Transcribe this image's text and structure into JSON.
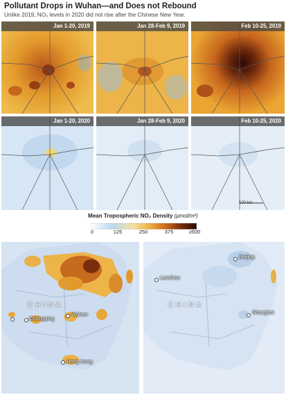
{
  "header": {
    "title": "Pollutant Drops in Wuhan—and Does not Rebound",
    "subtitle": "Unlike 2019, NO₂ levels in 2020 did not rise after the Chinese New Year."
  },
  "panels_2019": [
    {
      "label": "Jan 1-20, 2019",
      "level": "high"
    },
    {
      "label": "Jan 28-Feb 9, 2019",
      "level": "high"
    },
    {
      "label": "Feb 10-25, 2019",
      "level": "very-high"
    }
  ],
  "panels_2020": [
    {
      "label": "Jan 1-20, 2020",
      "level": "low"
    },
    {
      "label": "Jan 28-Feb 9, 2020",
      "level": "very-low"
    },
    {
      "label": "Feb 10-25, 2020",
      "level": "very-low"
    }
  ],
  "scale_bar": "100 km",
  "colorbar": {
    "title": "Mean Tropospheric NO₂ Density",
    "unit": "(μmol/m²)",
    "ticks": [
      "0",
      "125",
      "250",
      "375",
      "≥500"
    ],
    "colors": [
      "#ffffff",
      "#bcd8ee",
      "#f3e1a4",
      "#eeb243",
      "#cf6d1c",
      "#7a2d0c",
      "#2a0c04"
    ]
  },
  "maps": {
    "left": {
      "country": "CHINA",
      "cities": [
        "Chongqing",
        "Wuhan",
        "Hong Kong"
      ]
    },
    "right": {
      "country": "CHINA",
      "cities": [
        "Beijing",
        "Lanzhou",
        "Shanghai"
      ]
    }
  }
}
